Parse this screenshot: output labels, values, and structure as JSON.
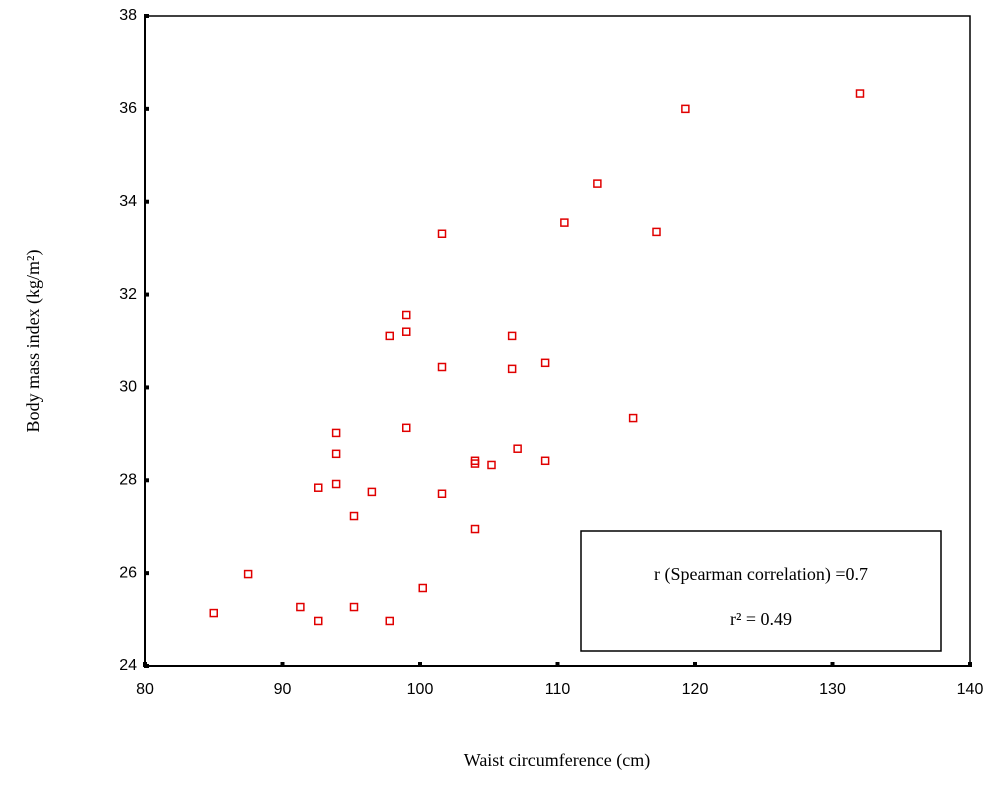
{
  "chart_data": {
    "type": "scatter",
    "x_label": "Waist circumference (cm)",
    "y_label": "Body mass index (kg/m²)",
    "annotations": [
      "r (Spearman correlation) =0.7",
      "r² = 0.49"
    ],
    "xlim": [
      80,
      140
    ],
    "xticks": [
      80,
      90,
      100,
      110,
      120,
      130,
      140
    ],
    "ylim": [
      24,
      38
    ],
    "yticks": [
      24,
      26,
      28,
      30,
      32,
      34,
      36,
      38
    ],
    "color": "#e00000",
    "x": [
      85.0,
      87.5,
      91.3,
      92.6,
      95.2,
      97.8,
      100.2,
      92.6,
      93.9,
      93.9,
      93.9,
      95.2,
      96.5,
      97.8,
      99.0,
      99.0,
      99.0,
      101.6,
      101.6,
      101.6,
      104.0,
      104.0,
      104.0,
      105.2,
      106.7,
      106.7,
      107.1,
      109.1,
      109.1,
      110.5,
      112.9,
      115.5,
      117.2,
      119.3,
      132.0
    ],
    "values": [
      25.14,
      25.98,
      25.27,
      24.97,
      25.27,
      24.97,
      25.68,
      27.84,
      27.92,
      28.57,
      29.02,
      27.23,
      27.75,
      31.11,
      31.56,
      31.2,
      29.13,
      33.31,
      30.44,
      27.71,
      28.42,
      28.36,
      26.95,
      28.33,
      31.11,
      30.4,
      28.68,
      28.42,
      30.53,
      33.55,
      34.39,
      29.34,
      33.35,
      36.0,
      36.33
    ]
  }
}
